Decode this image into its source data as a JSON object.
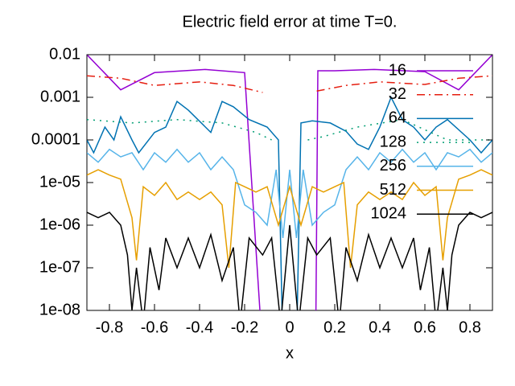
{
  "chart_data": {
    "type": "line",
    "title": "Electric field error at time T=0.",
    "x_label": "x",
    "log_y": true,
    "legend_position": "upper right",
    "xlim": [
      -0.9,
      0.9
    ],
    "xticks": [
      -0.8,
      -0.6,
      -0.4,
      -0.2,
      0,
      0.2,
      0.4,
      0.6,
      0.8
    ],
    "ylim": [
      1e-08,
      0.01
    ],
    "yticks": [
      {
        "value": 1e-08,
        "label": "1e-08"
      },
      {
        "value": 1e-07,
        "label": "1e-07"
      },
      {
        "value": 1e-06,
        "label": "1e-06"
      },
      {
        "value": 1e-05,
        "label": "1e-05"
      },
      0.0001,
      0.001,
      0.01
    ],
    "series": [
      {
        "name": "16",
        "color": "#9400d3",
        "dash": "none",
        "x": [
          -0.9,
          -0.75,
          -0.6,
          -0.375,
          -0.2,
          -0.12,
          0.115,
          0.125,
          0.2,
          0.375,
          0.6,
          0.75,
          0.9
        ],
        "values": [
          0.01,
          0.0015,
          0.0038,
          0.0045,
          0.0038,
          1e-09,
          1e-09,
          0.0042,
          0.0042,
          0.0045,
          0.004,
          0.0015,
          0.01
        ]
      },
      {
        "name": "32",
        "color": "#e51e10",
        "dash": "10 5 2 5",
        "x": [
          -0.9,
          -0.75,
          -0.6,
          -0.4,
          -0.25,
          -0.12,
          0,
          0.12,
          0.25,
          0.4,
          0.6,
          0.75,
          0.9
        ],
        "values": [
          0.0032,
          0.0028,
          0.0019,
          0.0023,
          0.0019,
          0.0013,
          null,
          0.0014,
          0.0019,
          0.0023,
          0.002,
          0.0028,
          0.0032
        ]
      },
      {
        "name": "64",
        "color": "#0072b2",
        "dash": "none",
        "x": [
          -0.9,
          -0.87,
          -0.82,
          -0.78,
          -0.75,
          -0.7,
          -0.67,
          -0.6,
          -0.55,
          -0.5,
          -0.45,
          -0.35,
          -0.3,
          -0.25,
          -0.18,
          -0.1,
          -0.05,
          -0.03,
          0.03,
          0.05,
          0.1,
          0.18,
          0.25,
          0.3,
          0.35,
          0.4,
          0.45,
          0.5,
          0.55,
          0.6,
          0.65,
          0.7,
          0.8,
          0.85,
          0.9
        ],
        "values": [
          0.0001,
          5e-05,
          0.0002,
          0.0001,
          0.00035,
          0.0001,
          5e-05,
          0.00015,
          0.0002,
          0.0008,
          0.0005,
          0.00015,
          0.0008,
          0.0006,
          0.0003,
          0.0002,
          0.0001,
          1e-09,
          1e-09,
          0.00025,
          0.00028,
          0.00025,
          0.00016,
          8e-05,
          6e-05,
          0.0002,
          0.001,
          0.0003,
          0.0002,
          0.0001,
          0.0002,
          0.0003,
          0.0001,
          5e-05,
          0.0001
        ]
      },
      {
        "name": "128",
        "color": "#009e73",
        "dash": "2 6",
        "x": [
          -0.9,
          -0.7,
          -0.5,
          -0.3,
          -0.15,
          -0.08,
          0,
          0.08,
          0.15,
          0.3,
          0.5,
          0.7,
          0.9
        ],
        "values": [
          0.0003,
          0.00025,
          0.0003,
          0.00025,
          0.00015,
          0.0001,
          null,
          0.0001,
          0.00012,
          0.0002,
          0.0003,
          0.0001,
          0.0001
        ]
      },
      {
        "name": "256",
        "color": "#56b4e9",
        "dash": "none",
        "x": [
          -0.9,
          -0.85,
          -0.8,
          -0.75,
          -0.7,
          -0.65,
          -0.6,
          -0.55,
          -0.5,
          -0.45,
          -0.4,
          -0.35,
          -0.3,
          -0.25,
          -0.2,
          -0.15,
          -0.1,
          -0.06,
          -0.03,
          0,
          0.03,
          0.06,
          0.1,
          0.15,
          0.2,
          0.25,
          0.3,
          0.35,
          0.4,
          0.45,
          0.5,
          0.55,
          0.6,
          0.65,
          0.7,
          0.75,
          0.8,
          0.85,
          0.9
        ],
        "values": [
          5e-05,
          3e-05,
          6e-05,
          4e-05,
          5e-05,
          2e-05,
          5e-05,
          3e-05,
          6e-05,
          3e-05,
          5e-05,
          2e-05,
          4e-05,
          2e-05,
          3e-06,
          2e-06,
          1e-06,
          2e-05,
          5e-07,
          2e-05,
          5e-07,
          2e-05,
          1e-06,
          2e-06,
          3e-06,
          2e-05,
          4e-05,
          2e-05,
          5e-05,
          3e-05,
          6e-05,
          3e-05,
          5e-05,
          2e-05,
          5e-05,
          4e-05,
          6e-05,
          3e-05,
          5e-05
        ]
      },
      {
        "name": "512",
        "color": "#e69f00",
        "dash": "none",
        "x": [
          -0.9,
          -0.85,
          -0.8,
          -0.75,
          -0.7,
          -0.68,
          -0.65,
          -0.6,
          -0.55,
          -0.5,
          -0.45,
          -0.4,
          -0.35,
          -0.3,
          -0.27,
          -0.24,
          -0.2,
          -0.15,
          -0.1,
          -0.05,
          0,
          0.05,
          0.1,
          0.15,
          0.2,
          0.24,
          0.27,
          0.3,
          0.35,
          0.4,
          0.45,
          0.5,
          0.55,
          0.6,
          0.65,
          0.68,
          0.7,
          0.75,
          0.8,
          0.85,
          0.9
        ],
        "values": [
          1.5e-05,
          2e-05,
          1.5e-05,
          1.2e-05,
          1.5e-06,
          1.5e-07,
          8e-06,
          5e-06,
          1e-05,
          4e-06,
          6e-06,
          4e-06,
          6e-06,
          3e-06,
          1e-07,
          1e-05,
          8e-06,
          6e-06,
          8e-06,
          1e-06,
          8e-06,
          1e-06,
          8e-06,
          6e-06,
          8e-06,
          1e-05,
          1e-07,
          3e-06,
          6e-06,
          4e-06,
          6e-06,
          4e-06,
          1e-05,
          5e-06,
          8e-06,
          1.5e-07,
          1.5e-06,
          1.2e-05,
          1.5e-05,
          2e-05,
          1.5e-05
        ]
      },
      {
        "name": "1024",
        "color": "#000000",
        "dash": "none",
        "x": [
          -0.9,
          -0.85,
          -0.8,
          -0.75,
          -0.72,
          -0.7,
          -0.68,
          -0.65,
          -0.62,
          -0.58,
          -0.55,
          -0.5,
          -0.45,
          -0.4,
          -0.35,
          -0.3,
          -0.25,
          -0.22,
          -0.18,
          -0.12,
          -0.08,
          -0.04,
          0,
          0.04,
          0.08,
          0.12,
          0.18,
          0.22,
          0.25,
          0.3,
          0.35,
          0.4,
          0.45,
          0.5,
          0.55,
          0.58,
          0.62,
          0.65,
          0.68,
          0.7,
          0.72,
          0.75,
          0.8,
          0.85,
          0.9
        ],
        "values": [
          2e-06,
          1.5e-06,
          2e-06,
          1e-06,
          2e-07,
          1e-08,
          1e-07,
          5e-09,
          3e-07,
          3e-08,
          5e-07,
          1e-07,
          5e-07,
          1e-07,
          6e-07,
          5e-08,
          3e-07,
          5e-09,
          5e-07,
          2e-07,
          5e-07,
          5e-09,
          1e-06,
          5e-09,
          5e-07,
          2e-07,
          5e-07,
          5e-09,
          3e-07,
          5e-08,
          6e-07,
          1e-07,
          5e-07,
          1e-07,
          5e-07,
          3e-08,
          3e-07,
          5e-09,
          1e-07,
          1e-08,
          2e-07,
          1e-06,
          2e-06,
          1.5e-06,
          2e-06
        ]
      }
    ]
  }
}
